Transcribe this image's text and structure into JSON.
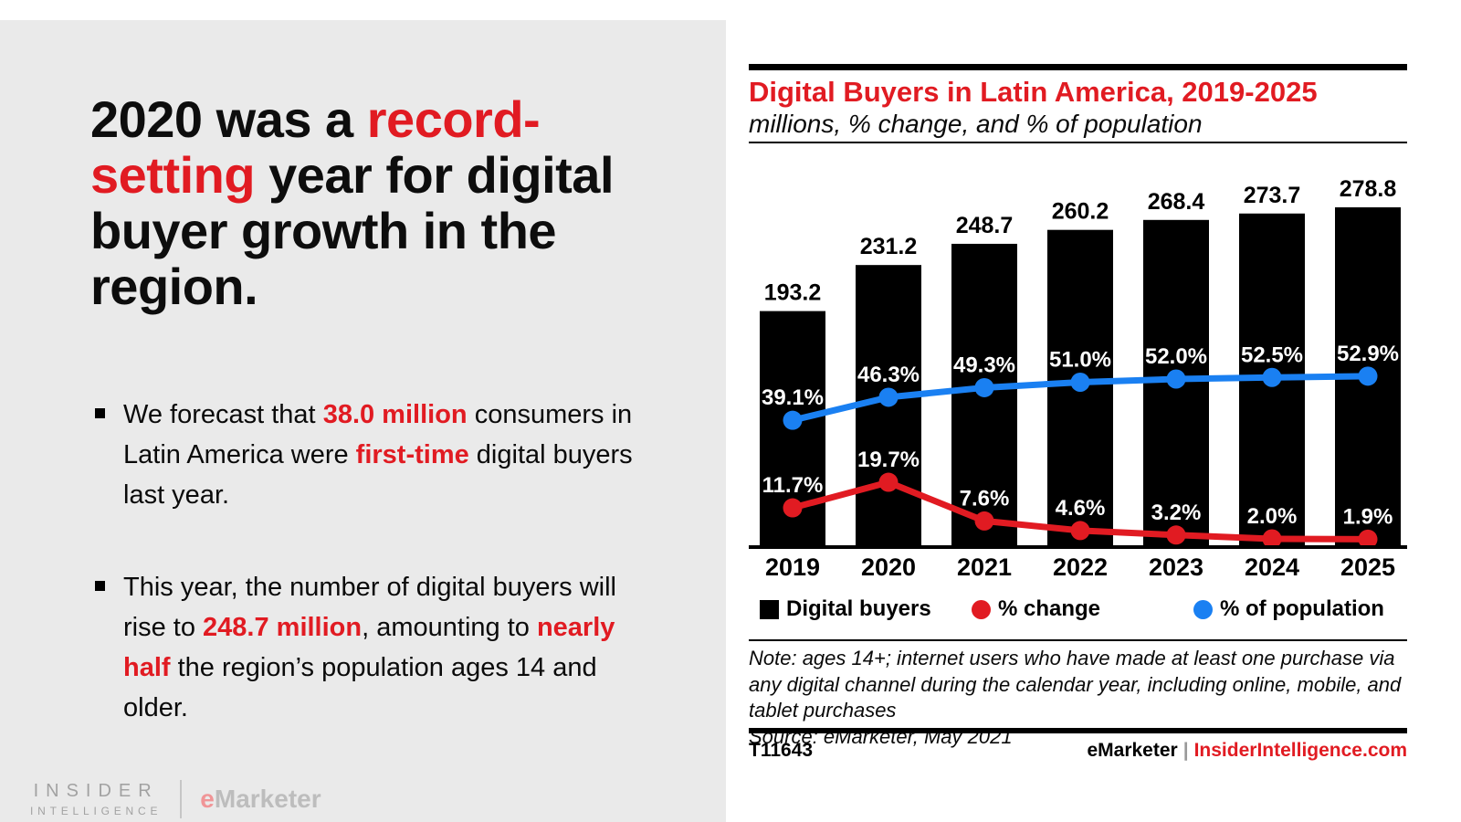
{
  "colors": {
    "accent_red": "#e11b22",
    "line_blue": "#1a80f2",
    "bar_black": "#000000",
    "panel_gray": "#eaeaea"
  },
  "left_panel": {
    "headline": {
      "lines": [
        [
          {
            "t": "2020 was a "
          },
          {
            "t": "record-",
            "em": true
          }
        ],
        [
          {
            "t": "setting",
            "em": true
          },
          {
            "t": " year for digital"
          }
        ],
        [
          {
            "t": "buyer growth in the"
          }
        ],
        [
          {
            "t": "region."
          }
        ]
      ]
    },
    "bullets": [
      {
        "lines": [
          [
            {
              "t": "We forecast that "
            },
            {
              "t": "38.0 million",
              "em": true
            },
            {
              "t": " consumers in"
            }
          ],
          [
            {
              "t": "Latin America were "
            },
            {
              "t": "first-time",
              "em": true
            },
            {
              "t": " digital buyers"
            }
          ],
          [
            {
              "t": "last year."
            }
          ]
        ]
      },
      {
        "lines": [
          [
            {
              "t": "This year, the number of digital buyers will"
            }
          ],
          [
            {
              "t": "rise to "
            },
            {
              "t": "248.7 million",
              "em": true
            },
            {
              "t": ", amounting to "
            },
            {
              "t": "nearly",
              "em": true
            }
          ],
          [
            {
              "t": "half",
              "em": true
            },
            {
              "t": " the region’s population ages 14 and"
            }
          ],
          [
            {
              "t": "older."
            }
          ]
        ]
      }
    ],
    "logo": {
      "line1": "INSIDER",
      "line2": "INTELLIGENCE",
      "brand_e": "e",
      "brand_rest": "Marketer"
    }
  },
  "chart": {
    "title": "Digital Buyers in Latin America, 2019-2025",
    "subtitle": "millions, % change, and % of population",
    "legend": [
      {
        "label": "Digital buyers",
        "marker": "square",
        "color": "#000000"
      },
      {
        "label": "% change",
        "marker": "circle",
        "color": "#e11b22"
      },
      {
        "label": "% of population",
        "marker": "circle",
        "color": "#1a80f2"
      }
    ],
    "note": "Note: ages 14+; internet users who have made at least one purchase via any digital channel during the calendar year, including online, mobile, and tablet purchases",
    "source": "Source: eMarketer, May 2021",
    "footer_left": "T11643",
    "footer_brand": "eMarketer",
    "footer_sep": "|",
    "footer_link": "InsiderIntelligence.com"
  },
  "chart_data": {
    "type": "bar",
    "subtype": "bar-line-combo",
    "categories": [
      "2019",
      "2020",
      "2021",
      "2022",
      "2023",
      "2024",
      "2025"
    ],
    "series": [
      {
        "name": "Digital buyers",
        "type": "bar",
        "color": "#000000",
        "values": [
          193.2,
          231.2,
          248.7,
          260.2,
          268.4,
          273.7,
          278.8
        ]
      },
      {
        "name": "% change",
        "type": "line",
        "color": "#e11b22",
        "values": [
          11.7,
          19.7,
          7.6,
          4.6,
          3.2,
          2.0,
          1.9
        ]
      },
      {
        "name": "% of population",
        "type": "line",
        "color": "#1a80f2",
        "values": [
          39.1,
          46.3,
          49.3,
          51.0,
          52.0,
          52.5,
          52.9
        ]
      }
    ],
    "title": "Digital Buyers in Latin America, 2019-2025",
    "xlabel": "",
    "ylabel": "millions / percent",
    "bar_axis_max": 278.8,
    "grid": false,
    "legend_position": "bottom",
    "value_labels_shown": true
  }
}
